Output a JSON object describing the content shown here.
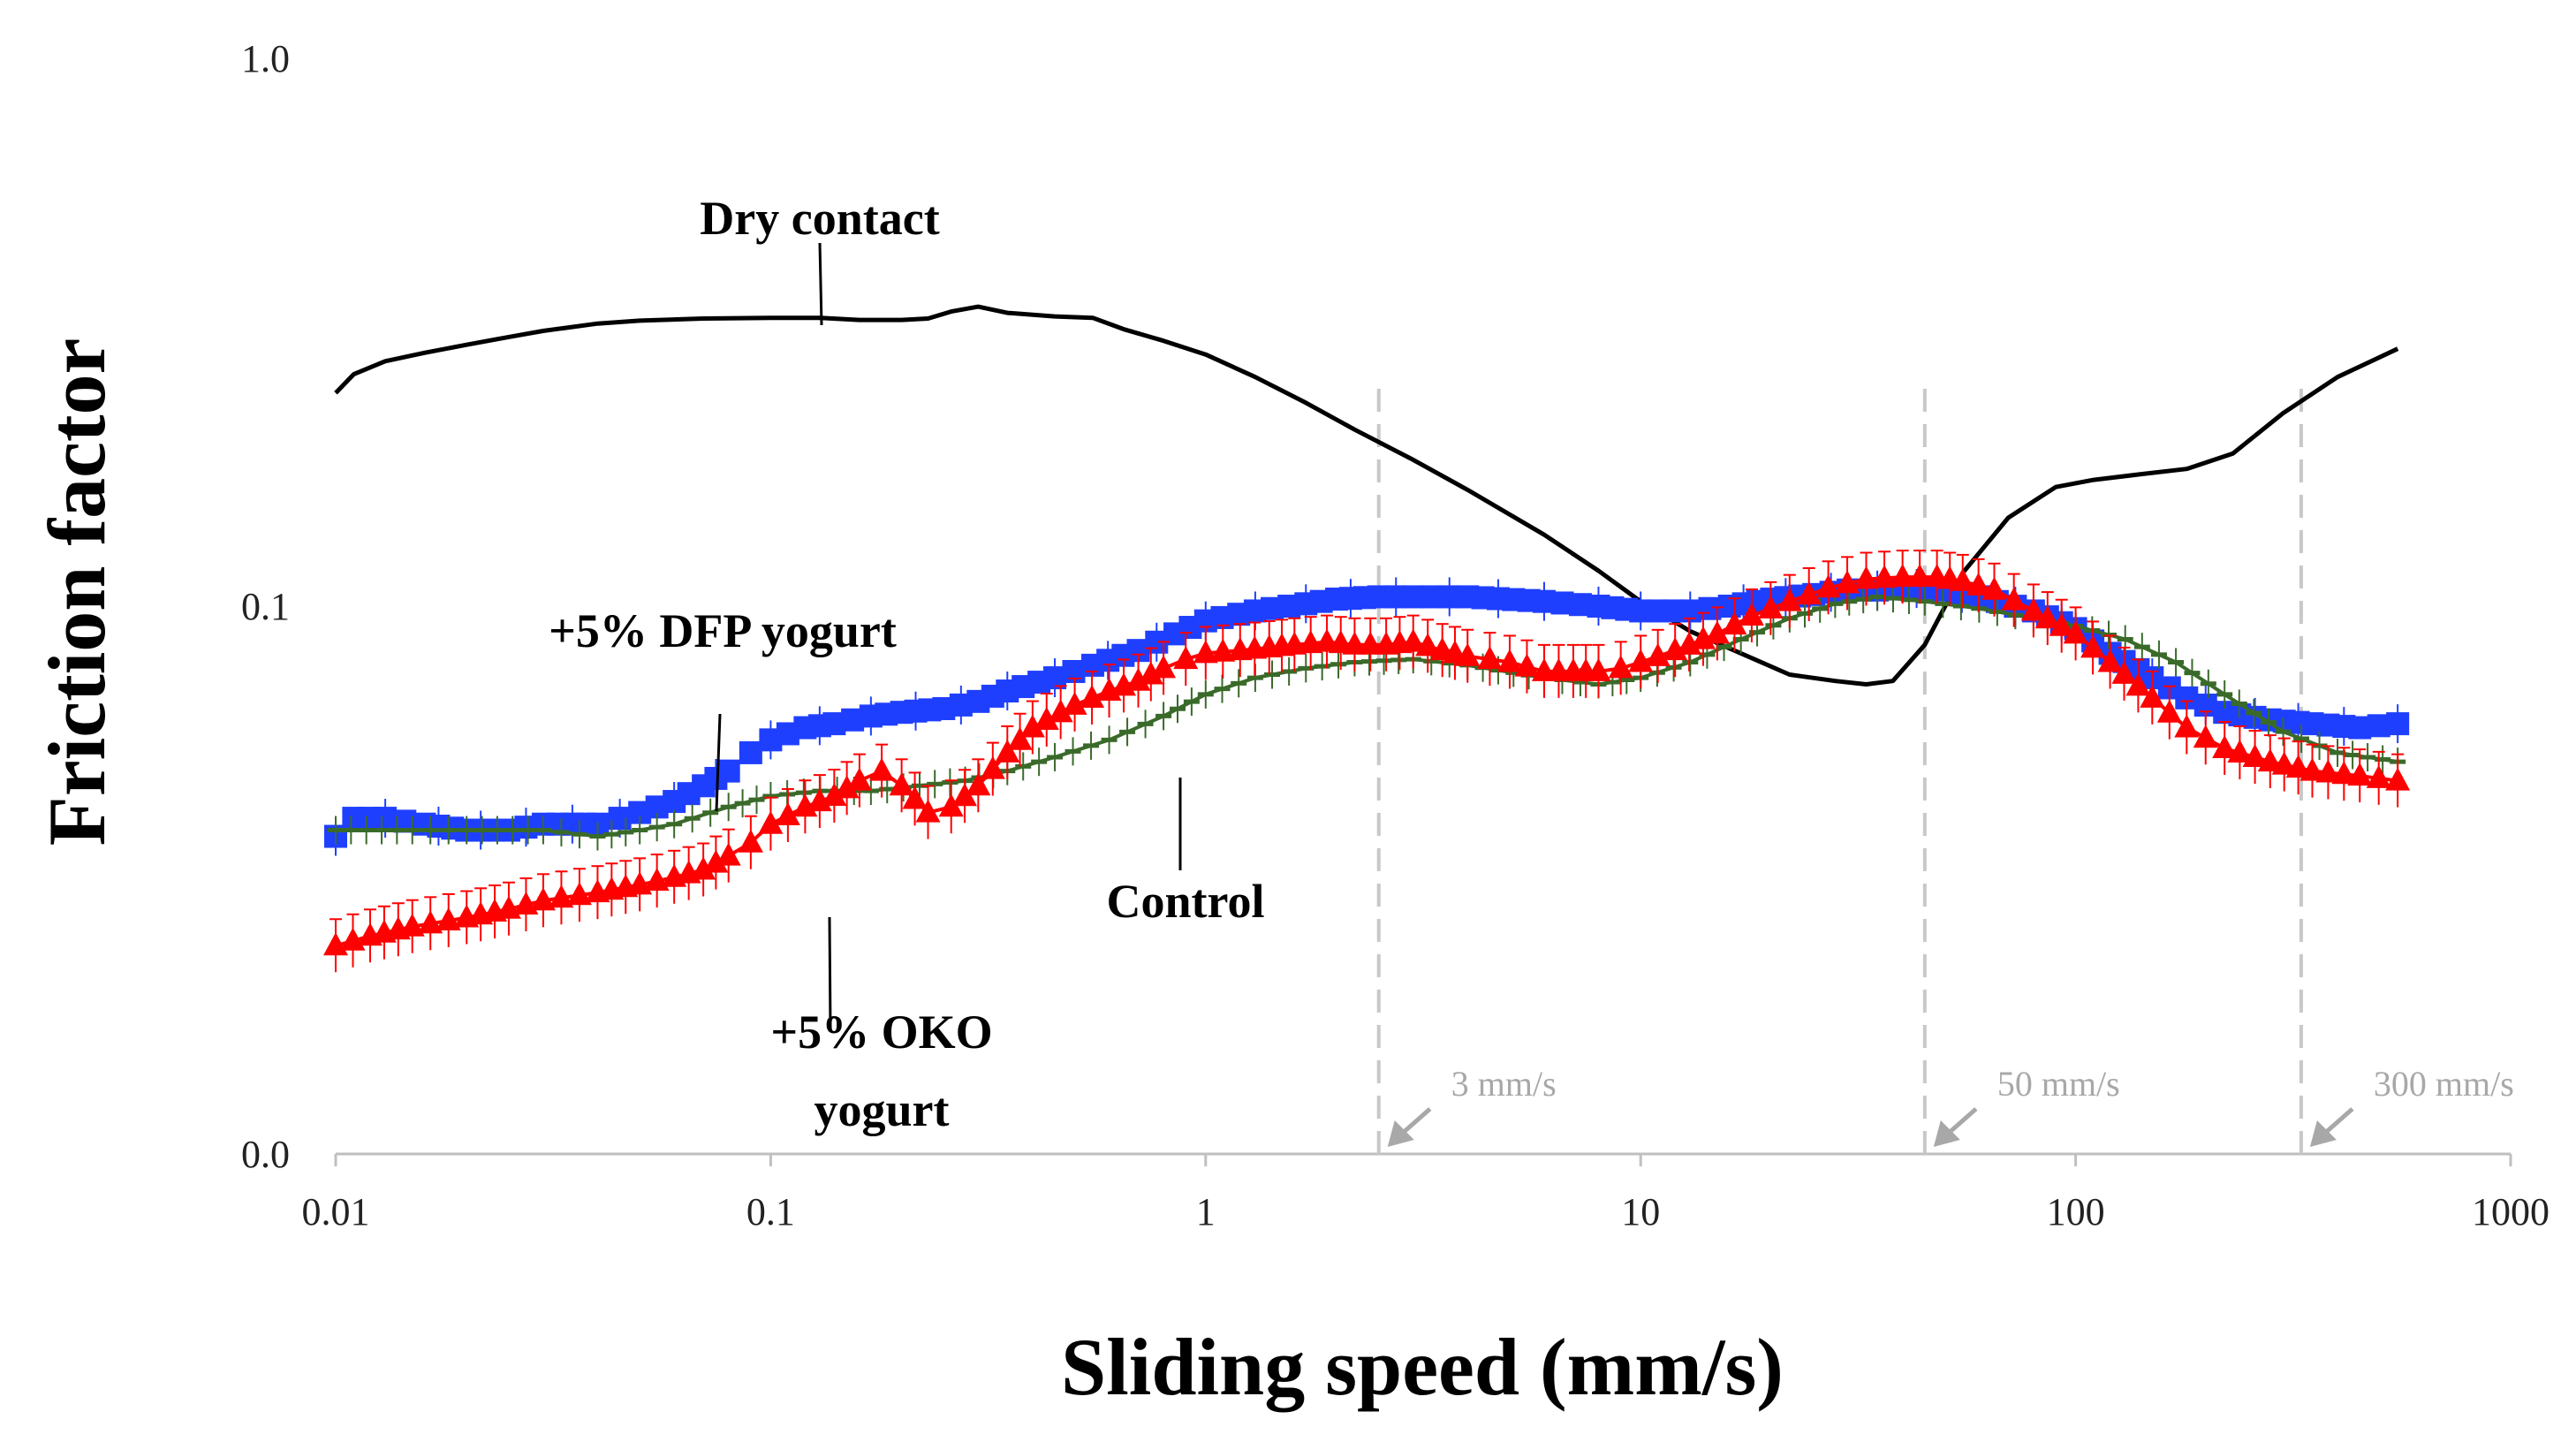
{
  "chart_data": {
    "type": "line",
    "xlabel": "Sliding speed (mm/s)",
    "ylabel": "Friction factor",
    "x_scale": "log",
    "xlim": [
      0.01,
      1000
    ],
    "ylim": [
      0.01,
      1.0
    ],
    "x_ticks": [
      "0.01",
      "0.1",
      "1",
      "10",
      "100",
      "1000"
    ],
    "y_ticks": [
      "0.0",
      "0.1",
      "1.0"
    ],
    "series": [
      {
        "name": "Dry contact",
        "color": "#000000",
        "marker": "none",
        "x": [
          0.01,
          0.011,
          0.013,
          0.016,
          0.02,
          0.025,
          0.03,
          0.04,
          0.05,
          0.07,
          0.1,
          0.13,
          0.16,
          0.2,
          0.23,
          0.26,
          0.3,
          0.35,
          0.45,
          0.55,
          0.65,
          0.8,
          1,
          1.3,
          1.7,
          2.2,
          3,
          4,
          6,
          8,
          10,
          13,
          17,
          22,
          28,
          33,
          38,
          45,
          55,
          70,
          90,
          110,
          140,
          180,
          230,
          300,
          400,
          550
        ],
        "y": [
          0.245,
          0.265,
          0.28,
          0.29,
          0.3,
          0.31,
          0.318,
          0.328,
          0.332,
          0.335,
          0.336,
          0.336,
          0.333,
          0.333,
          0.335,
          0.345,
          0.352,
          0.343,
          0.338,
          0.336,
          0.32,
          0.305,
          0.288,
          0.262,
          0.235,
          0.21,
          0.185,
          0.163,
          0.135,
          0.116,
          0.102,
          0.09,
          0.082,
          0.075,
          0.073,
          0.072,
          0.073,
          0.085,
          0.115,
          0.145,
          0.165,
          0.17,
          0.174,
          0.178,
          0.19,
          0.225,
          0.262,
          0.295
        ]
      },
      {
        "name": "+5% DFP yogurt",
        "color": "#1f3fff",
        "marker": "square",
        "x": [
          0.01,
          0.011,
          0.013,
          0.016,
          0.02,
          0.025,
          0.03,
          0.035,
          0.04,
          0.045,
          0.05,
          0.06,
          0.07,
          0.08,
          0.09,
          0.1,
          0.12,
          0.14,
          0.17,
          0.2,
          0.25,
          0.3,
          0.35,
          0.45,
          0.55,
          0.7,
          0.85,
          1,
          1.3,
          1.7,
          2,
          2.5,
          3,
          4,
          6,
          8,
          10,
          13,
          16,
          20,
          25,
          30,
          35,
          40,
          50,
          60,
          80,
          100,
          120,
          150,
          180,
          220,
          280,
          350,
          450,
          550
        ],
        "y": [
          0.038,
          0.041,
          0.041,
          0.04,
          0.039,
          0.039,
          0.04,
          0.04,
          0.04,
          0.041,
          0.042,
          0.044,
          0.047,
          0.05,
          0.054,
          0.057,
          0.06,
          0.061,
          0.063,
          0.064,
          0.065,
          0.067,
          0.07,
          0.074,
          0.078,
          0.083,
          0.089,
          0.094,
          0.098,
          0.101,
          0.103,
          0.104,
          0.104,
          0.104,
          0.102,
          0.1,
          0.098,
          0.098,
          0.1,
          0.103,
          0.105,
          0.107,
          0.107,
          0.108,
          0.107,
          0.104,
          0.098,
          0.091,
          0.082,
          0.074,
          0.068,
          0.064,
          0.062,
          0.061,
          0.06,
          0.061
        ]
      },
      {
        "name": "Control",
        "color": "#3a6a2a",
        "marker": "dash",
        "x": [
          0.01,
          0.015,
          0.02,
          0.03,
          0.04,
          0.05,
          0.06,
          0.08,
          0.1,
          0.13,
          0.17,
          0.22,
          0.28,
          0.35,
          0.45,
          0.6,
          0.8,
          1,
          1.3,
          1.7,
          2.2,
          3,
          4,
          6,
          8,
          10,
          13,
          17,
          22,
          28,
          35,
          45,
          60,
          80,
          100,
          130,
          170,
          220,
          300,
          400,
          550
        ],
        "y": [
          0.039,
          0.039,
          0.039,
          0.039,
          0.038,
          0.039,
          0.04,
          0.043,
          0.045,
          0.046,
          0.046,
          0.047,
          0.048,
          0.05,
          0.053,
          0.057,
          0.063,
          0.069,
          0.074,
          0.077,
          0.079,
          0.08,
          0.078,
          0.074,
          0.072,
          0.074,
          0.079,
          0.087,
          0.095,
          0.101,
          0.104,
          0.102,
          0.099,
          0.095,
          0.092,
          0.087,
          0.079,
          0.069,
          0.059,
          0.054,
          0.052
        ]
      },
      {
        "name": "+5% OKO yogurt",
        "color": "#ff0000",
        "marker": "triangle",
        "x": [
          0.01,
          0.012,
          0.015,
          0.02,
          0.025,
          0.03,
          0.04,
          0.05,
          0.06,
          0.07,
          0.08,
          0.09,
          0.1,
          0.12,
          0.14,
          0.16,
          0.18,
          0.2,
          0.23,
          0.26,
          0.3,
          0.35,
          0.4,
          0.5,
          0.6,
          0.7,
          0.8,
          0.9,
          1,
          1.2,
          1.4,
          1.6,
          1.9,
          2.2,
          2.6,
          3,
          3.5,
          4,
          4.5,
          5,
          6,
          7,
          8,
          9,
          10,
          12,
          15,
          18,
          22,
          27,
          33,
          40,
          48,
          55,
          65,
          80,
          100,
          120,
          150,
          180,
          220,
          280,
          350,
          450,
          550
        ],
        "y": [
          0.024,
          0.025,
          0.026,
          0.027,
          0.028,
          0.029,
          0.03,
          0.031,
          0.032,
          0.033,
          0.035,
          0.037,
          0.04,
          0.043,
          0.045,
          0.048,
          0.05,
          0.047,
          0.042,
          0.043,
          0.047,
          0.054,
          0.06,
          0.066,
          0.07,
          0.073,
          0.077,
          0.08,
          0.082,
          0.083,
          0.084,
          0.085,
          0.086,
          0.085,
          0.085,
          0.086,
          0.083,
          0.081,
          0.08,
          0.079,
          0.076,
          0.076,
          0.076,
          0.077,
          0.079,
          0.083,
          0.089,
          0.096,
          0.102,
          0.108,
          0.112,
          0.113,
          0.113,
          0.111,
          0.107,
          0.098,
          0.089,
          0.079,
          0.068,
          0.06,
          0.055,
          0.052,
          0.05,
          0.049,
          0.048
        ]
      }
    ],
    "annotations": [
      {
        "text": "Dry contact"
      },
      {
        "text": "+5% DFP yogurt"
      },
      {
        "text": "Control"
      },
      {
        "text_lines": [
          "+5% OKO",
          "yogurt"
        ]
      }
    ],
    "reference_lines": [
      {
        "x": 2.5,
        "label": "3 mm/s"
      },
      {
        "x": 45,
        "label": "50 mm/s"
      },
      {
        "x": 330,
        "label": "300 mm/s"
      }
    ],
    "grid": false,
    "legend": "none"
  }
}
